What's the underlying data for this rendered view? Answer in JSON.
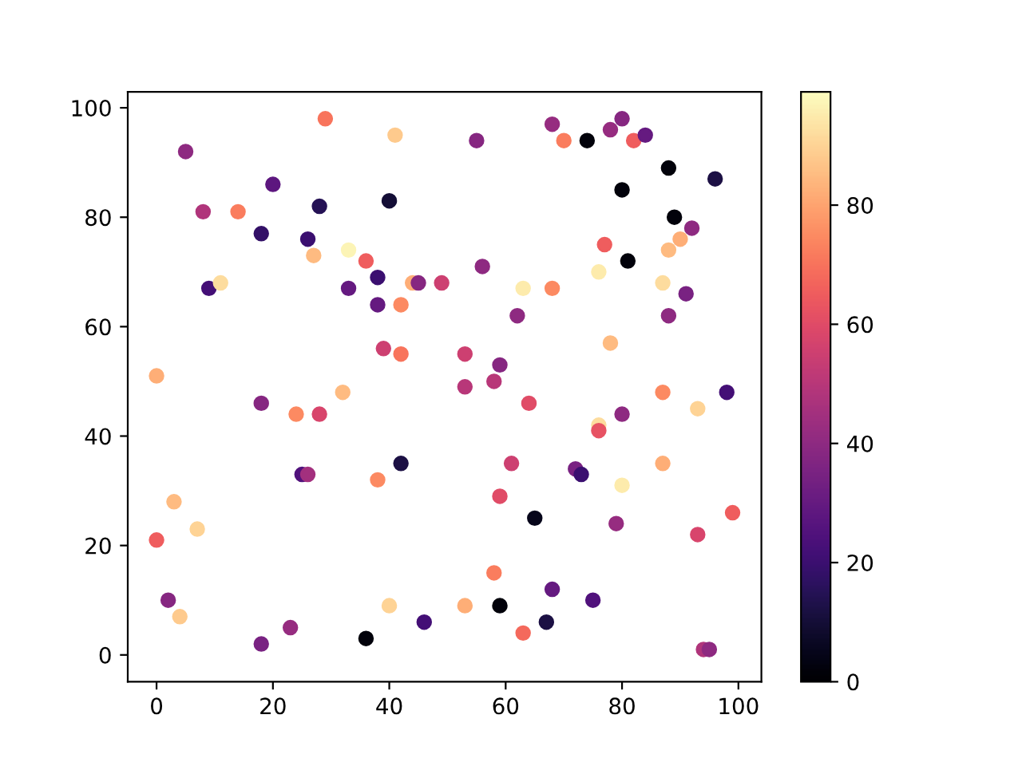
{
  "chart_data": {
    "type": "scatter",
    "x": [
      29,
      41,
      5,
      55,
      68,
      70,
      74,
      78,
      80,
      82,
      84,
      20,
      8,
      14,
      28,
      40,
      18,
      26,
      33,
      27,
      36,
      9,
      11,
      33,
      38,
      44,
      45,
      49,
      38,
      42,
      39,
      42,
      88,
      96,
      80,
      81,
      89,
      92,
      90,
      88,
      77,
      62,
      63,
      68,
      76,
      87,
      91,
      88,
      56,
      53,
      53,
      58,
      59,
      64,
      78,
      76,
      76,
      80,
      87,
      93,
      98,
      0,
      18,
      24,
      28,
      32,
      25,
      26,
      42,
      38,
      3,
      7,
      0,
      2,
      4,
      18,
      23,
      36,
      40,
      46,
      61,
      72,
      73,
      87,
      80,
      59,
      65,
      79,
      99,
      93,
      58,
      68,
      75,
      53,
      59,
      67,
      63,
      94,
      95
    ],
    "values": [
      98,
      95,
      92,
      94,
      97,
      94,
      94,
      96,
      98,
      94,
      95,
      86,
      81,
      81,
      82,
      83,
      77,
      76,
      74,
      73,
      72,
      67,
      68,
      67,
      69,
      68,
      68,
      68,
      64,
      64,
      56,
      55,
      89,
      87,
      85,
      72,
      80,
      78,
      76,
      74,
      75,
      62,
      67,
      67,
      70,
      68,
      66,
      62,
      71,
      55,
      49,
      50,
      53,
      46,
      57,
      42,
      41,
      44,
      48,
      45,
      48,
      51,
      46,
      44,
      44,
      48,
      33,
      33,
      35,
      32,
      28,
      23,
      21,
      10,
      7,
      2,
      5,
      3,
      9,
      6,
      35,
      34,
      33,
      35,
      31,
      29,
      25,
      24,
      26,
      22,
      15,
      12,
      10,
      9,
      9,
      6,
      4,
      1,
      1
    ],
    "cvalues": [
      70,
      88,
      40,
      38,
      42,
      72,
      2,
      42,
      38,
      65,
      30,
      28,
      48,
      72,
      15,
      10,
      18,
      20,
      97,
      85,
      65,
      22,
      92,
      30,
      20,
      82,
      38,
      55,
      30,
      75,
      55,
      70,
      2,
      12,
      2,
      2,
      2,
      40,
      82,
      85,
      65,
      40,
      95,
      75,
      95,
      92,
      35,
      40,
      40,
      55,
      50,
      50,
      38,
      60,
      85,
      92,
      62,
      40,
      75,
      90,
      22,
      82,
      38,
      75,
      58,
      85,
      25,
      45,
      12,
      75,
      85,
      90,
      65,
      38,
      88,
      35,
      42,
      2,
      90,
      22,
      55,
      35,
      20,
      82,
      95,
      60,
      5,
      42,
      65,
      58,
      72,
      30,
      25,
      82,
      2,
      12,
      68,
      48,
      40
    ],
    "xlim": [
      -4.95,
      103.95
    ],
    "ylim": [
      -4.9,
      102.9
    ],
    "xticks": [
      0,
      20,
      40,
      60,
      80,
      100
    ],
    "yticks": [
      0,
      20,
      40,
      60,
      80,
      100
    ],
    "clim": [
      0,
      99
    ],
    "cticks": [
      0,
      20,
      40,
      60,
      80
    ]
  }
}
